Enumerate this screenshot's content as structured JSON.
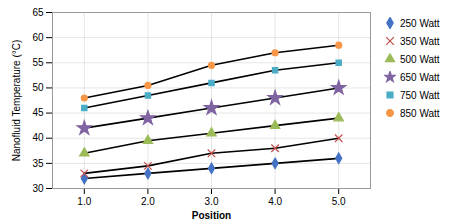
{
  "chart_data": {
    "type": "line",
    "xlabel": "Position",
    "ylabel": "Nanofluid Temperature (°C)",
    "x": [
      1,
      2,
      3,
      4,
      5
    ],
    "xlim": [
      0.5,
      5.5
    ],
    "xticks": [
      1,
      2,
      3,
      4,
      5
    ],
    "ylim": [
      30,
      65
    ],
    "yticks": [
      30,
      35,
      40,
      45,
      50,
      55,
      60,
      65
    ],
    "grid": true,
    "legend": "right",
    "series": [
      {
        "name": "250 Watt",
        "color": "#4472C4",
        "marker": "diamond",
        "values": [
          32,
          33,
          34,
          35,
          36
        ]
      },
      {
        "name": "350 Watt",
        "color": "#C0504D",
        "marker": "x",
        "values": [
          33,
          34.5,
          37,
          38,
          40
        ]
      },
      {
        "name": "500 Watt",
        "color": "#9BBB59",
        "marker": "triangle",
        "values": [
          37,
          39.5,
          41,
          42.5,
          44
        ]
      },
      {
        "name": "650 Watt",
        "color": "#8064A2",
        "marker": "star",
        "values": [
          42,
          44,
          46,
          48,
          50
        ]
      },
      {
        "name": "750 Watt",
        "color": "#4BACC6",
        "marker": "square",
        "values": [
          46,
          48.5,
          51,
          53.5,
          55
        ]
      },
      {
        "name": "850 Watt",
        "color": "#F79646",
        "marker": "circle",
        "values": [
          48,
          50.5,
          54.5,
          57,
          58.5
        ]
      }
    ]
  }
}
